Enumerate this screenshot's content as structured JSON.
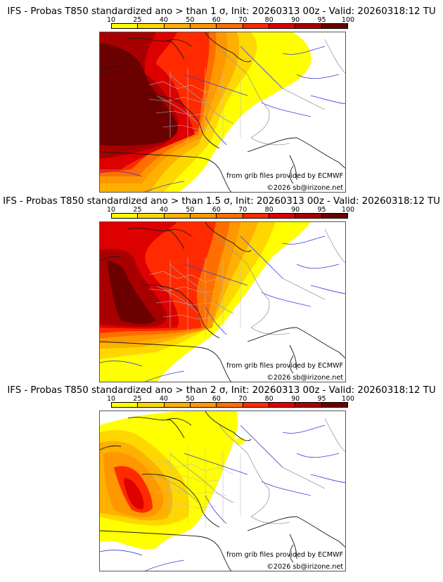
{
  "colorbar": {
    "ticks": [
      "10",
      "25",
      "40",
      "50",
      "60",
      "70",
      "80",
      "90",
      "95",
      "100"
    ],
    "colors": [
      "#ffff00",
      "#ffd700",
      "#ffb000",
      "#ff9800",
      "#ff6e00",
      "#ff2a00",
      "#dd0000",
      "#a80000",
      "#6a0000"
    ]
  },
  "panels": [
    {
      "title": "IFS - Probas T850  standardized ano > than 1 σ, Init: 20260313 00z - Valid: 20260318:12 TU",
      "sigma_threshold": 1,
      "credit_source": "from grib files provided by ECMWF",
      "credit_copyright": "©2026 sb@irizone.net"
    },
    {
      "title": "IFS - Probas T850  standardized ano > than 1.5 σ, Init: 20260313 00z - Valid: 20260318:12 TU",
      "sigma_threshold": 1.5,
      "credit_source": "from grib files provided by ECMWF",
      "credit_copyright": "©2026 sb@irizone.net"
    },
    {
      "title": "IFS - Probas T850  standardized ano > than 2 σ, Init: 20260313 00z - Valid: 20260318:12 TU",
      "sigma_threshold": 2,
      "credit_source": "from grib files provided by ECMWF",
      "credit_copyright": "©2026 sb@irizone.net"
    }
  ]
}
